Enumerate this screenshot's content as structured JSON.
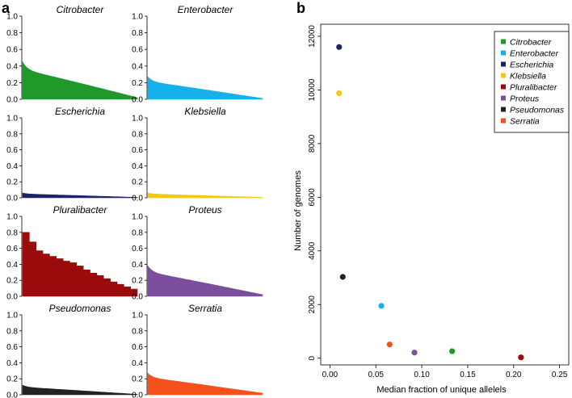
{
  "panel_a_label": "a",
  "panel_b_label": "b",
  "chart_data": [
    {
      "panel": "a",
      "type": "area",
      "description_ylim": [
        0,
        1.0
      ],
      "yticks": [
        "0.0",
        "0.2",
        "0.4",
        "0.6",
        "0.8",
        "1.0"
      ],
      "subplots": [
        {
          "title": "Citrobacter",
          "color": "#1f9a2a",
          "start": 0.45,
          "end": 0.02,
          "shape": "smooth"
        },
        {
          "title": "Enterobacter",
          "color": "#16b1ea",
          "start": 0.27,
          "end": 0.01,
          "shape": "smooth"
        },
        {
          "title": "Escherichia",
          "color": "#1c2466",
          "start": 0.06,
          "end": 0.005,
          "shape": "smooth"
        },
        {
          "title": "Klebsiella",
          "color": "#f2c718",
          "start": 0.06,
          "end": 0.005,
          "shape": "smooth"
        },
        {
          "title": "Pluralibacter",
          "color": "#9b0b0b",
          "start": 0.8,
          "end": 0.09,
          "shape": "steps",
          "steps": [
            0.8,
            0.68,
            0.57,
            0.53,
            0.5,
            0.47,
            0.44,
            0.42,
            0.38,
            0.33,
            0.29,
            0.26,
            0.22,
            0.18,
            0.15,
            0.12,
            0.09
          ]
        },
        {
          "title": "Proteus",
          "color": "#7c4f9e",
          "start": 0.38,
          "end": 0.02,
          "shape": "smooth"
        },
        {
          "title": "Pseudomonas",
          "color": "#222222",
          "start": 0.12,
          "end": 0.005,
          "shape": "smooth"
        },
        {
          "title": "Serratia",
          "color": "#f4511e",
          "start": 0.27,
          "end": 0.02,
          "shape": "smooth"
        }
      ]
    },
    {
      "panel": "b",
      "type": "scatter",
      "xlabel": "Median fraction of unique allelels",
      "ylabel": "Number of genomes",
      "xlim": [
        -0.01,
        0.26
      ],
      "ylim": [
        -250,
        12450
      ],
      "xticks": [
        "0.00",
        "0.05",
        "0.10",
        "0.15",
        "0.20",
        "0.25"
      ],
      "xtick_values": [
        0.0,
        0.05,
        0.1,
        0.15,
        0.2,
        0.25
      ],
      "yticks": [
        "0",
        "2000",
        "4000",
        "6000",
        "8000",
        "10000",
        "12000"
      ],
      "ytick_values": [
        0,
        2000,
        4000,
        6000,
        8000,
        10000,
        12000
      ],
      "legend_position": "top-right",
      "points": [
        {
          "name": "Citrobacter",
          "x": 0.133,
          "y": 260,
          "color": "#1f9a2a"
        },
        {
          "name": "Enterobacter",
          "x": 0.056,
          "y": 1950,
          "color": "#16b1ea"
        },
        {
          "name": "Escherichia",
          "x": 0.01,
          "y": 11600,
          "color": "#1c2466"
        },
        {
          "name": "Klebsiella",
          "x": 0.01,
          "y": 9880,
          "color": "#f2c718"
        },
        {
          "name": "Pluralibacter",
          "x": 0.208,
          "y": 30,
          "color": "#9b0b0b"
        },
        {
          "name": "Proteus",
          "x": 0.092,
          "y": 210,
          "color": "#7c4f9e"
        },
        {
          "name": "Pseudomonas",
          "x": 0.014,
          "y": 3030,
          "color": "#222222"
        },
        {
          "name": "Serratia",
          "x": 0.065,
          "y": 510,
          "color": "#f4511e"
        }
      ]
    }
  ]
}
